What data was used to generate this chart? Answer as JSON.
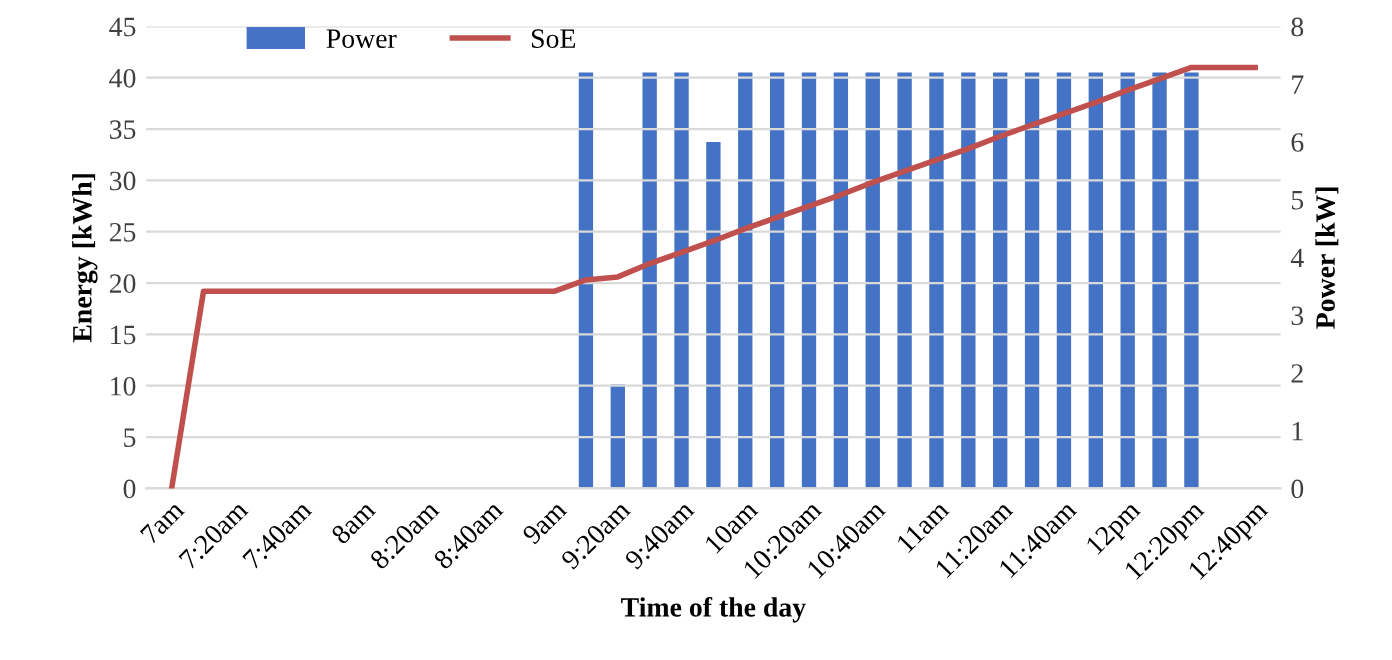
{
  "chart_data": {
    "type": "bar",
    "xlabel": "Time of the day",
    "ylabel": "Energy [kWh]",
    "y2label": "Power [kW]",
    "categories": [
      "7am",
      null,
      "7:20am",
      null,
      "7:40am",
      null,
      "8am",
      null,
      "8:20am",
      null,
      "8:40am",
      null,
      "9am",
      null,
      "9:20am",
      null,
      "9:40am",
      null,
      "10am",
      null,
      "10:20am",
      null,
      "10:40am",
      null,
      "11am",
      null,
      "11:20am",
      null,
      "11:40am",
      null,
      "12pm",
      null,
      "12:20pm",
      null,
      "12:40pm"
    ],
    "series": [
      {
        "name": "Power",
        "axis": "y2",
        "color": "#4472c4",
        "values": [
          null,
          null,
          null,
          null,
          null,
          null,
          null,
          null,
          null,
          null,
          null,
          null,
          null,
          7.2,
          1.8,
          7.2,
          7.2,
          6.0,
          7.2,
          7.2,
          7.2,
          7.2,
          7.2,
          7.2,
          7.2,
          7.2,
          7.2,
          7.2,
          7.2,
          7.2,
          7.2,
          7.2,
          7.2,
          null,
          null
        ]
      },
      {
        "name": "SoE",
        "type": "line",
        "axis": "y",
        "color": "#c0504d",
        "values": [
          0,
          19.2,
          19.2,
          19.2,
          19.2,
          19.2,
          19.2,
          19.2,
          19.2,
          19.2,
          19.2,
          19.2,
          19.2,
          20.3,
          20.6,
          21.9,
          23.0,
          24.1,
          25.3,
          26.4,
          27.5,
          28.6,
          29.8,
          30.9,
          32.0,
          33.1,
          34.3,
          35.4,
          36.5,
          37.6,
          38.8,
          39.9,
          41.0,
          41.0,
          41.0
        ]
      }
    ],
    "ylim": [
      0,
      45
    ],
    "yticks": [
      0,
      5,
      10,
      15,
      20,
      25,
      30,
      35,
      40,
      45
    ],
    "y2lim": [
      0,
      8
    ],
    "y2ticks": [
      0,
      1,
      2,
      3,
      4,
      5,
      6,
      7,
      8
    ],
    "grid": "y",
    "legend": "top left",
    "marker": "none",
    "line_style": "solid"
  }
}
